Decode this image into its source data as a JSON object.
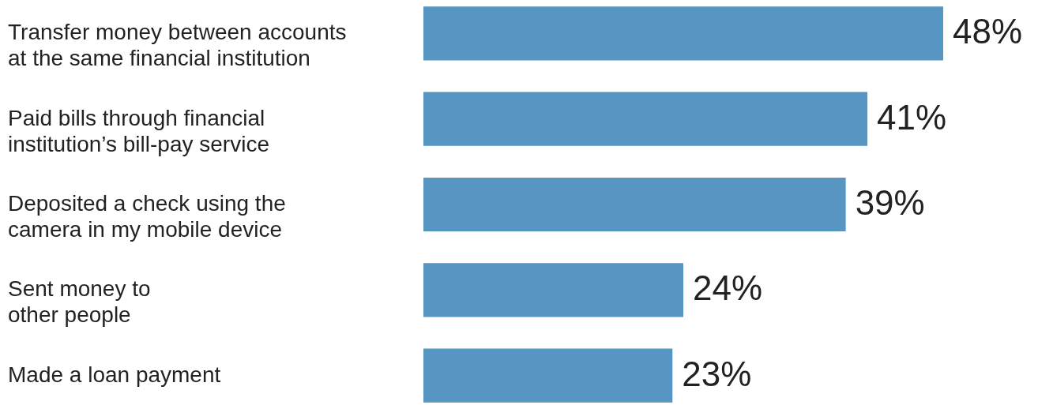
{
  "chart_data": {
    "type": "bar",
    "orientation": "horizontal",
    "categories": [
      "Transfer money between accounts at the same financial institution",
      "Paid bills through financial institution’s bill-pay service",
      "Deposited a check using the camera in my mobile device",
      "Sent money to other people",
      "Made a loan payment"
    ],
    "values": [
      48,
      41,
      39,
      24,
      23
    ],
    "value_labels": [
      "48%",
      "41%",
      "39%",
      "24%",
      "23%"
    ],
    "color": "#5795c2",
    "tick_labels": "y"
  }
}
